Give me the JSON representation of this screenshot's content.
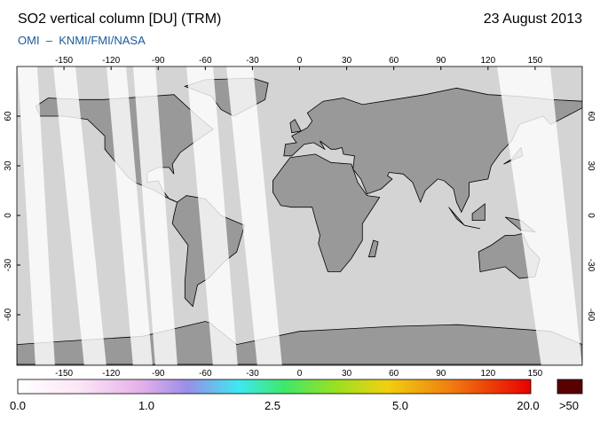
{
  "header": {
    "title": "SO2 vertical column [DU] (TRM)",
    "date": "23 August 2013",
    "source": "OMI  –  KNMI/FMI/NASA"
  },
  "map": {
    "lon_ticks": [
      -150,
      -120,
      -90,
      -60,
      -30,
      0,
      30,
      60,
      90,
      120,
      150
    ],
    "lat_ticks": [
      60,
      30,
      0,
      -30,
      -60
    ]
  },
  "colorbar": {
    "labels": [
      "0.0",
      "1.0",
      "2.5",
      "5.0",
      "20.0"
    ],
    "overflow_label": ">50"
  }
}
